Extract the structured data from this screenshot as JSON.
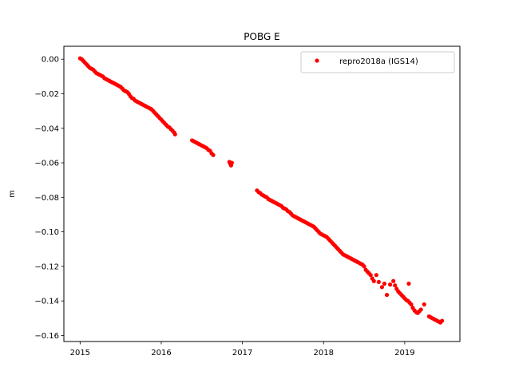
{
  "chart_data": {
    "type": "scatter",
    "title": "POBG E",
    "xlabel": "",
    "ylabel": "m",
    "xlim": [
      2014.8,
      2019.68
    ],
    "ylim": [
      -0.1635,
      0.0075
    ],
    "x_ticks": [
      2015,
      2016,
      2017,
      2018,
      2019
    ],
    "x_tick_labels": [
      "2015",
      "2016",
      "2017",
      "2018",
      "2019"
    ],
    "y_ticks": [
      0.0,
      -0.02,
      -0.04,
      -0.06,
      -0.08,
      -0.1,
      -0.12,
      -0.14,
      -0.16
    ],
    "y_tick_labels": [
      "0.00",
      "−0.02",
      "−0.04",
      "−0.06",
      "−0.08",
      "−0.10",
      "−0.12",
      "−0.14",
      "−0.16"
    ],
    "grid": false,
    "legend_position": "top-right",
    "series": [
      {
        "name": "repro2018a (IGS14)",
        "color": "#ff0000",
        "marker": "circle",
        "points": [
          [
            2015.0,
            0.0005
          ],
          [
            2015.02,
            0.0
          ],
          [
            2015.04,
            -0.001
          ],
          [
            2015.06,
            -0.002
          ],
          [
            2015.08,
            -0.003
          ],
          [
            2015.1,
            -0.004
          ],
          [
            2015.12,
            -0.005
          ],
          [
            2015.14,
            -0.0055
          ],
          [
            2015.16,
            -0.006
          ],
          [
            2015.18,
            -0.007
          ],
          [
            2015.2,
            -0.008
          ],
          [
            2015.22,
            -0.0085
          ],
          [
            2015.24,
            -0.009
          ],
          [
            2015.26,
            -0.0095
          ],
          [
            2015.28,
            -0.01
          ],
          [
            2015.3,
            -0.011
          ],
          [
            2015.32,
            -0.0115
          ],
          [
            2015.34,
            -0.012
          ],
          [
            2015.36,
            -0.0125
          ],
          [
            2015.38,
            -0.013
          ],
          [
            2015.4,
            -0.0135
          ],
          [
            2015.42,
            -0.014
          ],
          [
            2015.44,
            -0.0145
          ],
          [
            2015.46,
            -0.015
          ],
          [
            2015.48,
            -0.0155
          ],
          [
            2015.5,
            -0.016
          ],
          [
            2015.52,
            -0.017
          ],
          [
            2015.54,
            -0.018
          ],
          [
            2015.56,
            -0.0185
          ],
          [
            2015.58,
            -0.019
          ],
          [
            2015.6,
            -0.02
          ],
          [
            2015.62,
            -0.0215
          ],
          [
            2015.64,
            -0.0225
          ],
          [
            2015.66,
            -0.023
          ],
          [
            2015.68,
            -0.024
          ],
          [
            2015.7,
            -0.0245
          ],
          [
            2015.72,
            -0.025
          ],
          [
            2015.74,
            -0.0255
          ],
          [
            2015.76,
            -0.026
          ],
          [
            2015.78,
            -0.0265
          ],
          [
            2015.8,
            -0.027
          ],
          [
            2015.82,
            -0.0275
          ],
          [
            2015.84,
            -0.028
          ],
          [
            2015.86,
            -0.0285
          ],
          [
            2015.88,
            -0.029
          ],
          [
            2015.9,
            -0.03
          ],
          [
            2015.92,
            -0.031
          ],
          [
            2015.94,
            -0.032
          ],
          [
            2015.96,
            -0.033
          ],
          [
            2015.98,
            -0.034
          ],
          [
            2016.0,
            -0.035
          ],
          [
            2016.02,
            -0.036
          ],
          [
            2016.04,
            -0.037
          ],
          [
            2016.06,
            -0.038
          ],
          [
            2016.08,
            -0.039
          ],
          [
            2016.1,
            -0.0395
          ],
          [
            2016.12,
            -0.0405
          ],
          [
            2016.14,
            -0.0415
          ],
          [
            2016.16,
            -0.0425
          ],
          [
            2016.17,
            -0.0435
          ],
          [
            2016.38,
            -0.047
          ],
          [
            2016.4,
            -0.0475
          ],
          [
            2016.42,
            -0.048
          ],
          [
            2016.44,
            -0.0485
          ],
          [
            2016.46,
            -0.049
          ],
          [
            2016.48,
            -0.0495
          ],
          [
            2016.5,
            -0.05
          ],
          [
            2016.52,
            -0.0505
          ],
          [
            2016.54,
            -0.051
          ],
          [
            2016.56,
            -0.0515
          ],
          [
            2016.58,
            -0.0525
          ],
          [
            2016.6,
            -0.053
          ],
          [
            2016.62,
            -0.0545
          ],
          [
            2016.64,
            -0.0555
          ],
          [
            2016.84,
            -0.0595
          ],
          [
            2016.85,
            -0.0605
          ],
          [
            2016.86,
            -0.0615
          ],
          [
            2016.87,
            -0.06
          ],
          [
            2017.18,
            -0.076
          ],
          [
            2017.2,
            -0.077
          ],
          [
            2017.22,
            -0.0775
          ],
          [
            2017.24,
            -0.0785
          ],
          [
            2017.26,
            -0.079
          ],
          [
            2017.28,
            -0.0795
          ],
          [
            2017.3,
            -0.08
          ],
          [
            2017.32,
            -0.081
          ],
          [
            2017.34,
            -0.0815
          ],
          [
            2017.36,
            -0.082
          ],
          [
            2017.38,
            -0.0825
          ],
          [
            2017.4,
            -0.083
          ],
          [
            2017.42,
            -0.0835
          ],
          [
            2017.44,
            -0.084
          ],
          [
            2017.46,
            -0.0845
          ],
          [
            2017.48,
            -0.085
          ],
          [
            2017.5,
            -0.086
          ],
          [
            2017.52,
            -0.0865
          ],
          [
            2017.54,
            -0.087
          ],
          [
            2017.56,
            -0.088
          ],
          [
            2017.58,
            -0.0885
          ],
          [
            2017.6,
            -0.0895
          ],
          [
            2017.62,
            -0.0905
          ],
          [
            2017.64,
            -0.091
          ],
          [
            2017.66,
            -0.0915
          ],
          [
            2017.68,
            -0.092
          ],
          [
            2017.7,
            -0.0925
          ],
          [
            2017.72,
            -0.093
          ],
          [
            2017.74,
            -0.0935
          ],
          [
            2017.76,
            -0.094
          ],
          [
            2017.78,
            -0.0945
          ],
          [
            2017.8,
            -0.095
          ],
          [
            2017.82,
            -0.0955
          ],
          [
            2017.84,
            -0.096
          ],
          [
            2017.86,
            -0.0965
          ],
          [
            2017.88,
            -0.097
          ],
          [
            2017.9,
            -0.098
          ],
          [
            2017.92,
            -0.099
          ],
          [
            2017.94,
            -0.1
          ],
          [
            2017.96,
            -0.101
          ],
          [
            2017.98,
            -0.1015
          ],
          [
            2018.0,
            -0.102
          ],
          [
            2018.02,
            -0.1025
          ],
          [
            2018.04,
            -0.103
          ],
          [
            2018.06,
            -0.104
          ],
          [
            2018.08,
            -0.105
          ],
          [
            2018.1,
            -0.106
          ],
          [
            2018.12,
            -0.107
          ],
          [
            2018.14,
            -0.108
          ],
          [
            2018.16,
            -0.109
          ],
          [
            2018.18,
            -0.11
          ],
          [
            2018.2,
            -0.111
          ],
          [
            2018.22,
            -0.112
          ],
          [
            2018.24,
            -0.113
          ],
          [
            2018.26,
            -0.1135
          ],
          [
            2018.28,
            -0.114
          ],
          [
            2018.3,
            -0.1145
          ],
          [
            2018.32,
            -0.115
          ],
          [
            2018.34,
            -0.1155
          ],
          [
            2018.36,
            -0.116
          ],
          [
            2018.38,
            -0.1165
          ],
          [
            2018.4,
            -0.117
          ],
          [
            2018.42,
            -0.1175
          ],
          [
            2018.44,
            -0.118
          ],
          [
            2018.46,
            -0.1185
          ],
          [
            2018.48,
            -0.119
          ],
          [
            2018.5,
            -0.12
          ],
          [
            2018.52,
            -0.122
          ],
          [
            2018.54,
            -0.123
          ],
          [
            2018.56,
            -0.124
          ],
          [
            2018.58,
            -0.125
          ],
          [
            2018.6,
            -0.127
          ],
          [
            2018.62,
            -0.1285
          ],
          [
            2018.65,
            -0.125
          ],
          [
            2018.68,
            -0.129
          ],
          [
            2018.72,
            -0.132
          ],
          [
            2018.75,
            -0.13
          ],
          [
            2018.78,
            -0.1365
          ],
          [
            2018.82,
            -0.1305
          ],
          [
            2018.86,
            -0.1285
          ],
          [
            2018.88,
            -0.131
          ],
          [
            2018.9,
            -0.133
          ],
          [
            2018.92,
            -0.1345
          ],
          [
            2018.94,
            -0.1355
          ],
          [
            2018.96,
            -0.1365
          ],
          [
            2018.98,
            -0.1375
          ],
          [
            2019.0,
            -0.1385
          ],
          [
            2019.02,
            -0.1395
          ],
          [
            2019.04,
            -0.14
          ],
          [
            2019.05,
            -0.13
          ],
          [
            2019.06,
            -0.141
          ],
          [
            2019.08,
            -0.142
          ],
          [
            2019.1,
            -0.144
          ],
          [
            2019.12,
            -0.1455
          ],
          [
            2019.14,
            -0.1465
          ],
          [
            2019.16,
            -0.147
          ],
          [
            2019.18,
            -0.146
          ],
          [
            2019.2,
            -0.145
          ],
          [
            2019.24,
            -0.142
          ],
          [
            2019.3,
            -0.149
          ],
          [
            2019.32,
            -0.1495
          ],
          [
            2019.34,
            -0.15
          ],
          [
            2019.36,
            -0.1505
          ],
          [
            2019.38,
            -0.151
          ],
          [
            2019.4,
            -0.1515
          ],
          [
            2019.42,
            -0.152
          ],
          [
            2019.44,
            -0.1525
          ],
          [
            2019.46,
            -0.1515
          ]
        ]
      }
    ]
  }
}
